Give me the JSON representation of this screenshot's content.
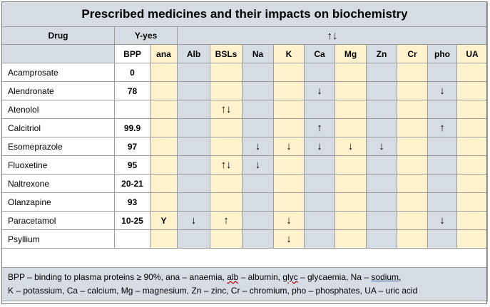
{
  "title": "Prescribed medicines and their impacts on biochemistry",
  "header": {
    "drug": "Drug",
    "yes_legend": "Y-yes",
    "arrows": "↑↓"
  },
  "columns": [
    "BPP",
    "ana",
    "Alb",
    "BSLs",
    "Na",
    "K",
    "Ca",
    "Mg",
    "Zn",
    "Cr",
    "pho",
    "UA"
  ],
  "rows": [
    {
      "drug": "Acamprosate",
      "cells": [
        "0",
        "",
        "",
        "",
        "",
        "",
        "",
        "",
        "",
        "",
        "",
        ""
      ]
    },
    {
      "drug": "Alendronate",
      "cells": [
        "78",
        "",
        "",
        "",
        "",
        "",
        "↓",
        "",
        "",
        "",
        "↓",
        ""
      ]
    },
    {
      "drug": "Atenolol",
      "cells": [
        "",
        "",
        "",
        "↑↓",
        "",
        "",
        "",
        "",
        "",
        "",
        "",
        ""
      ]
    },
    {
      "drug": "Calcitriol",
      "cells": [
        "99.9",
        "",
        "",
        "",
        "",
        "",
        "↑",
        "",
        "",
        "",
        "↑",
        ""
      ]
    },
    {
      "drug": "Esomeprazole",
      "cells": [
        "97",
        "",
        "",
        "",
        "↓",
        "↓",
        "↓",
        "↓",
        "↓",
        "",
        "",
        ""
      ]
    },
    {
      "drug": "Fluoxetine",
      "cells": [
        "95",
        "",
        "",
        "↑↓",
        "↓",
        "",
        "",
        "",
        "",
        "",
        "",
        ""
      ]
    },
    {
      "drug": "Naltrexone",
      "cells": [
        "20-21",
        "",
        "",
        "",
        "",
        "",
        "",
        "",
        "",
        "",
        "",
        ""
      ]
    },
    {
      "drug": "Olanzapine",
      "cells": [
        "93",
        "",
        "",
        "",
        "",
        "",
        "",
        "",
        "",
        "",
        "",
        ""
      ]
    },
    {
      "drug": "Paracetamol",
      "cells": [
        "10-25",
        "Y",
        "↓",
        "↑",
        "",
        "↓",
        "",
        "",
        "",
        "",
        "↓",
        ""
      ]
    },
    {
      "drug": "Psyllium",
      "cells": [
        "",
        "",
        "",
        "",
        "",
        "↓",
        "",
        "",
        "",
        "",
        "",
        ""
      ]
    }
  ],
  "footnote": {
    "p1": "BPP – binding to plasma proteins ≥ 90%, ana – anaemia, ",
    "alb": "alb",
    "p2": " – albumin, ",
    "glyc": "glyc",
    "p3": " – glycaemia, Na – ",
    "sodium": "sodium,",
    "line2": "K – potassium, Ca – calcium, Mg – magnesium, Zn – zinc, Cr – chromium, pho – phosphates, UA – uric acid"
  },
  "colors": {
    "header_bg": "#d5dce4",
    "alt_col_bg": "#fff2cc",
    "border": "#9a9a9a"
  }
}
